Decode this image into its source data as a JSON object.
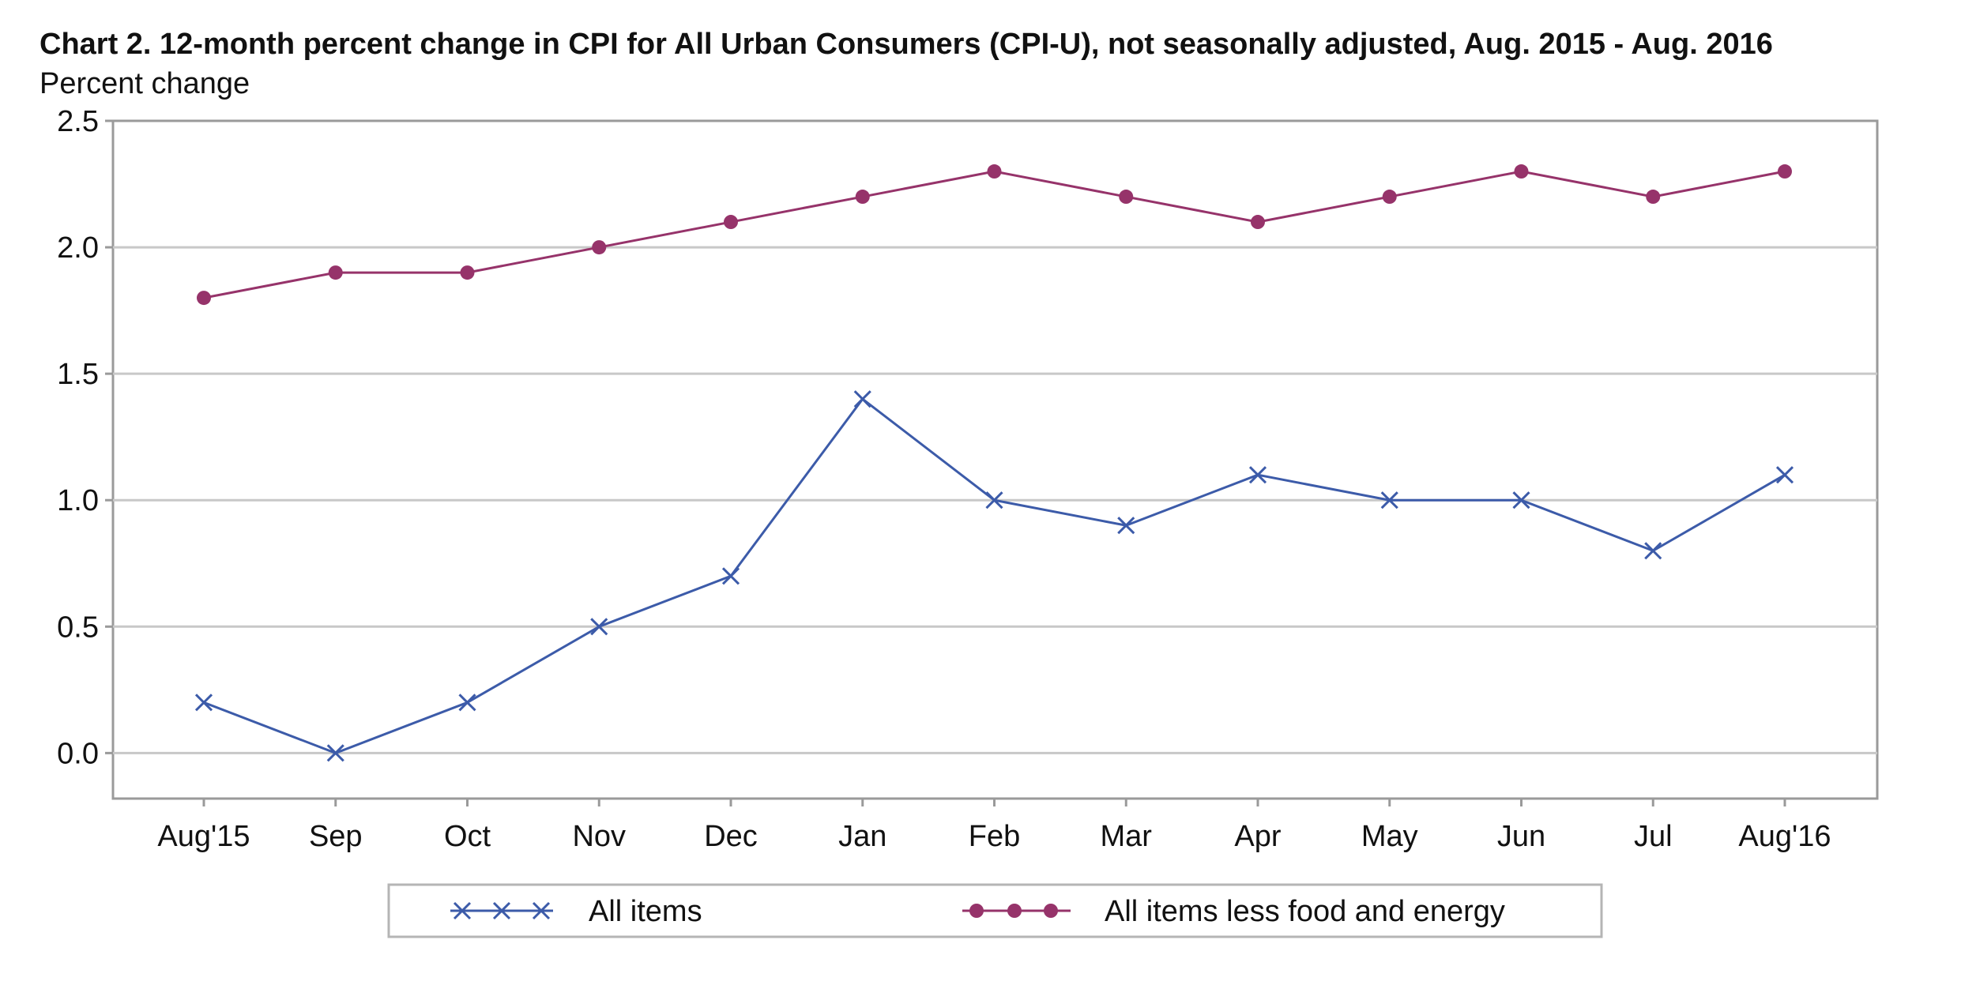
{
  "chart_data": {
    "type": "line",
    "title": "Chart 2. 12-month percent change in CPI for All Urban Consumers (CPI-U), not seasonally adjusted, Aug. 2015 - Aug. 2016",
    "subtitle": "Percent change",
    "xlabel": "",
    "ylabel": "",
    "categories": [
      "Aug'15",
      "Sep",
      "Oct",
      "Nov",
      "Dec",
      "Jan",
      "Feb",
      "Mar",
      "Apr",
      "May",
      "Jun",
      "Jul",
      "Aug'16"
    ],
    "ylim": [
      -0.18,
      2.5
    ],
    "yticks": [
      "2.5",
      "2.0",
      "1.5",
      "1.0",
      "0.5",
      "0.0"
    ],
    "ytick_values": [
      2.5,
      2.0,
      1.5,
      1.0,
      0.5,
      0.0
    ],
    "grid": true,
    "legend_position": "bottom",
    "series": [
      {
        "name": "All items",
        "color": "#3c5ba9",
        "marker": "x",
        "values": [
          0.2,
          0.0,
          0.2,
          0.5,
          0.7,
          1.4,
          1.0,
          0.9,
          1.1,
          1.0,
          1.0,
          0.8,
          1.1
        ]
      },
      {
        "name": "All items less food and energy",
        "color": "#96336a",
        "marker": "circle",
        "values": [
          1.8,
          1.9,
          1.9,
          2.0,
          2.1,
          2.2,
          2.3,
          2.2,
          2.1,
          2.2,
          2.3,
          2.2,
          2.3
        ]
      }
    ]
  }
}
